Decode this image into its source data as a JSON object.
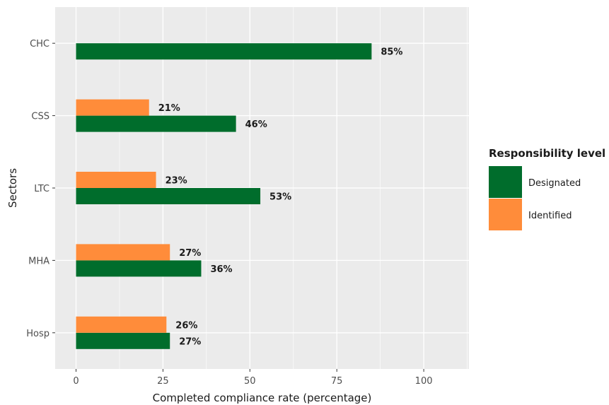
{
  "chart_data": {
    "type": "bar",
    "orientation": "horizontal",
    "title": "",
    "xlabel": "Completed compliance rate (percentage)",
    "ylabel": "Sectors",
    "xlim": [
      -6,
      113
    ],
    "x_ticks": [
      0,
      25,
      50,
      75,
      100
    ],
    "categories": [
      "CHC",
      "CSS",
      "LTC",
      "MHA",
      "Hosp"
    ],
    "series": [
      {
        "name": "Designated",
        "color": "#006d2c",
        "values": [
          85,
          46,
          53,
          36,
          27
        ],
        "labels": [
          "85%",
          "46%",
          "53%",
          "36%",
          "27%"
        ]
      },
      {
        "name": "Identified",
        "color": "#ff8c3a",
        "values": [
          null,
          21,
          23,
          27,
          26
        ],
        "labels": [
          "",
          "21%",
          "23%",
          "27%",
          "26%"
        ]
      }
    ],
    "legend": {
      "title": "Responsibility level",
      "placement": "right"
    },
    "grid": true
  }
}
